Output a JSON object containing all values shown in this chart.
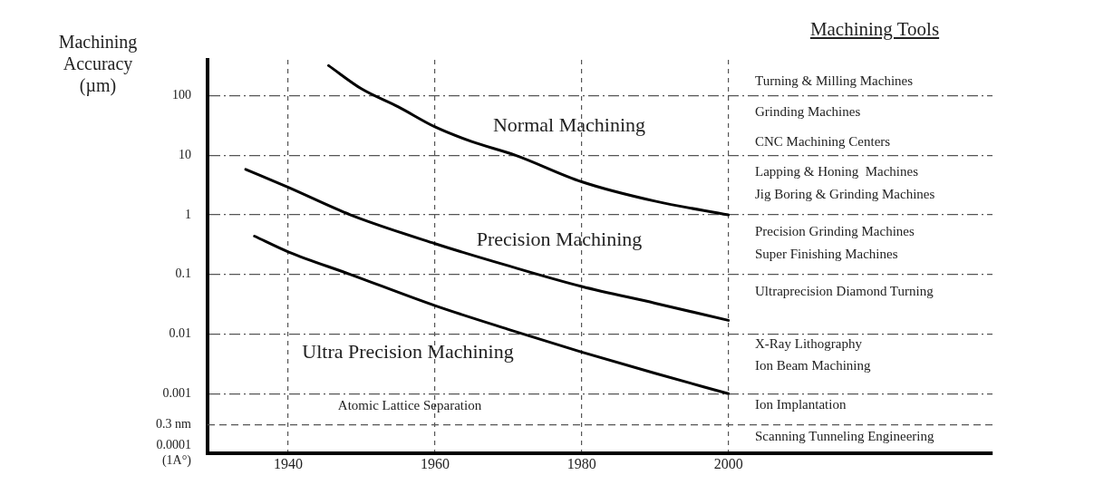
{
  "chart_data": {
    "type": "line",
    "title": "Machining Tools",
    "ylabel": "Machining Accuracy (µm)",
    "log": "y",
    "grid": true,
    "legend": false,
    "marker": "none",
    "line_style": "solid",
    "xlim": [
      1929,
      2036
    ],
    "xticks": [
      1940,
      1960,
      1980,
      2000
    ],
    "ylim": [
      0.0001,
      400
    ],
    "yticks": [
      {
        "value": 0.0001,
        "label": "0.0001\n(1A°)"
      },
      0.001,
      0.01,
      0.1,
      1,
      10,
      100
    ],
    "ref_lines": [
      {
        "axis": "y",
        "value": 0.0003,
        "label": "0.3 nm",
        "line_style": "dashed",
        "color": "#555555"
      }
    ],
    "series": [
      {
        "color": "#000000",
        "x": [
          1945.5,
          1950,
          1955,
          1960,
          1965,
          1971,
          1980,
          1990,
          2000
        ],
        "values": [
          320,
          130,
          65,
          30,
          17,
          10,
          3.6,
          1.7,
          1
        ]
      },
      {
        "color": "#000000",
        "x": [
          1934.2,
          1940,
          1948.5,
          1960,
          1970,
          1980,
          1990,
          2000
        ],
        "values": [
          5.8,
          2.9,
          1,
          0.33,
          0.14,
          0.063,
          0.033,
          0.017
        ]
      },
      {
        "color": "#000000",
        "x": [
          1935.4,
          1940,
          1948.5,
          1960,
          1970,
          1980,
          1990,
          2000
        ],
        "values": [
          0.44,
          0.24,
          0.1,
          0.03,
          0.012,
          0.005,
          0.0022,
          0.001
        ]
      }
    ],
    "annotations": [
      "Normal Machining",
      "Precision Machining",
      "Ultra Precision Machining",
      "Atomic Lattice Separation",
      "Turning & Milling Machines",
      "Grinding Machines",
      "CNC Machining Centers",
      "Lapping & Honing  Machines",
      "Jig Boring & Grinding Machines",
      "Precision Grinding Machines",
      "Super Finishing Machines",
      "Ultraprecision Diamond Turning",
      "X-Ray Lithography",
      "Ion Beam Machining",
      "Ion Implantation",
      "Scanning Tunneling Engineering"
    ]
  }
}
